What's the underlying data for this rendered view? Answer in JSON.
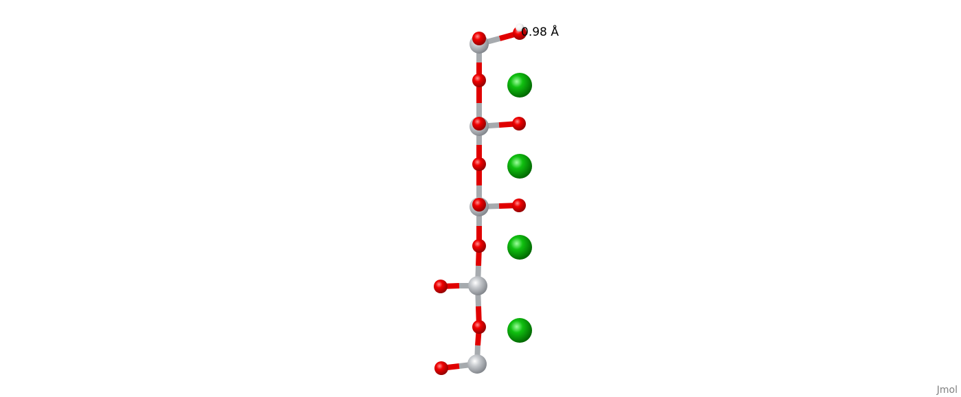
{
  "measurement": {
    "label": "0.98 Å"
  },
  "watermark": {
    "text": "Jmol"
  },
  "atom_colors": {
    "C": "#b4b8bc",
    "O": "#ee0000",
    "H": "#ffffff",
    "Ca": "#00b400"
  },
  "bond_color_carbon": "#a6aaae",
  "bond_color_oxygen": "#e00000"
}
